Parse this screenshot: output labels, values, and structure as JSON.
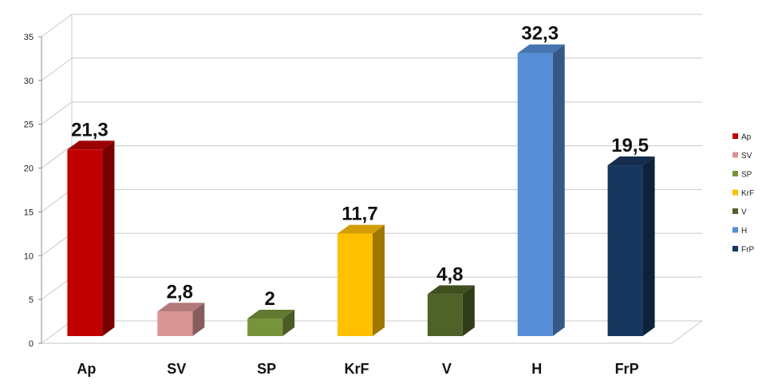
{
  "chart_data": {
    "type": "bar",
    "categories": [
      "Ap",
      "SV",
      "SP",
      "KrF",
      "V",
      "H",
      "FrP"
    ],
    "values": [
      21.3,
      2.8,
      2,
      11.7,
      4.8,
      32.3,
      19.5
    ],
    "value_labels": [
      "21,3",
      "2,8",
      "2",
      "11,7",
      "4,8",
      "32,3",
      "19,5"
    ],
    "colors": [
      "#c00000",
      "#d99594",
      "#77933c",
      "#ffc000",
      "#4f6228",
      "#558ed5",
      "#17375e"
    ],
    "yticks": [
      "0",
      "5",
      "10",
      "15",
      "20",
      "25",
      "30",
      "35"
    ],
    "ylim": [
      0,
      35
    ],
    "grid": true,
    "legend_position": "right",
    "title": "",
    "xlabel": "",
    "ylabel": ""
  }
}
